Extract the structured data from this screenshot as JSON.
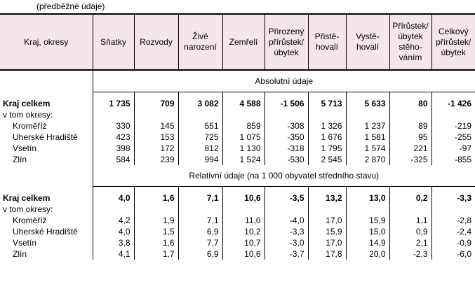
{
  "note": "(předběžné údaje)",
  "headers": {
    "c0": "Kraj, okresy",
    "c1": "Sňatky",
    "c2": "Rozvody",
    "c3": "Živě narození",
    "c4": "Zemřelí",
    "c5": "Přirozený přírůstek/ úbytek",
    "c6": "Přistě-hovalí",
    "c7": "Vystě-hovalí",
    "c8": "Přírůstek/ úbytek stěho-váním",
    "c9": "Celkový přírůstek/ úbytek"
  },
  "sections": [
    {
      "title": "Absolutní údaje",
      "total": {
        "label": "Kraj celkem",
        "values": [
          "1 735",
          "709",
          "3 082",
          "4 588",
          "-1 506",
          "5 713",
          "5 633",
          "80",
          "-1 426"
        ]
      },
      "sublabel": "v tom okresy:",
      "rows": [
        {
          "label": "Kroměříž",
          "values": [
            "330",
            "145",
            "551",
            "859",
            "-308",
            "1 326",
            "1 237",
            "89",
            "-219"
          ]
        },
        {
          "label": "Uherské Hradiště",
          "values": [
            "423",
            "153",
            "725",
            "1 075",
            "-350",
            "1 676",
            "1 581",
            "95",
            "-255"
          ]
        },
        {
          "label": "Vsetín",
          "values": [
            "398",
            "172",
            "812",
            "1 130",
            "-318",
            "1 795",
            "1 574",
            "221",
            "-97"
          ]
        },
        {
          "label": "Zlín",
          "values": [
            "584",
            "239",
            "994",
            "1 524",
            "-530",
            "2 545",
            "2 870",
            "-325",
            "-855"
          ]
        }
      ]
    },
    {
      "title": "Relativní údaje (na 1 000 obyvatel středního stavu)",
      "total": {
        "label": "Kraj celkem",
        "values": [
          "4,0",
          "1,6",
          "7,1",
          "10,6",
          "-3,5",
          "13,2",
          "13,0",
          "0,2",
          "-3,3"
        ]
      },
      "sublabel": "v tom okresy:",
      "rows": [
        {
          "label": "Kroměříž",
          "values": [
            "4,2",
            "1,9",
            "7,1",
            "11,0",
            "-4,0",
            "17,0",
            "15,9",
            "1,1",
            "-2,8"
          ]
        },
        {
          "label": "Uherské Hradiště",
          "values": [
            "4,0",
            "1,5",
            "6,9",
            "10,2",
            "-3,3",
            "15,9",
            "15,0",
            "0,9",
            "-2,4"
          ]
        },
        {
          "label": "Vsetín",
          "values": [
            "3,8",
            "1,6",
            "7,7",
            "10,7",
            "-3,0",
            "17,0",
            "14,9",
            "2,1",
            "-0,9"
          ]
        },
        {
          "label": "Zlín",
          "values": [
            "4,1",
            "1,7",
            "6,9",
            "10,6",
            "-3,7",
            "17,8",
            "20,0",
            "-2,3",
            "-6,0"
          ]
        }
      ]
    }
  ]
}
